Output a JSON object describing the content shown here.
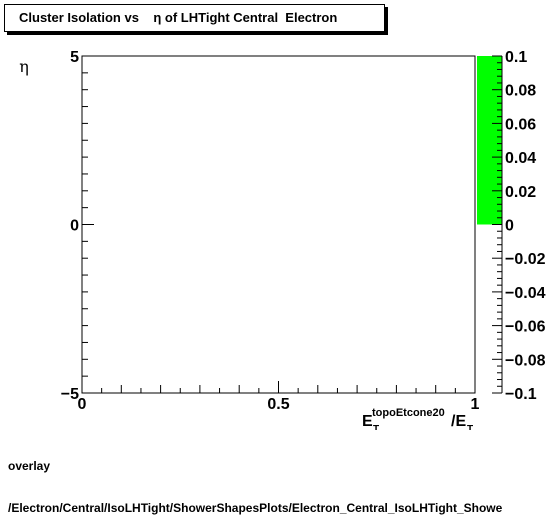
{
  "title": "Cluster Isolation vs    η of LHTight Central  Electron",
  "footer": {
    "line1": "overlay",
    "line2": "/Electron/Central/IsoLHTight/ShowerShapesPlots/Electron_Central_IsoLHTight_Showe"
  },
  "chart_data": {
    "type": "heatmap",
    "title": "Cluster Isolation vs    η of LHTight Central  Electron",
    "xlabel": "E_T^topoEtcone20 /E_T",
    "ylabel": "η",
    "xlim": [
      0,
      1
    ],
    "ylim": [
      -5,
      5
    ],
    "x_ticks": [
      {
        "value": 0,
        "label": "0"
      },
      {
        "value": 0.5,
        "label": "0.5"
      },
      {
        "value": 1,
        "label": "1"
      }
    ],
    "y_ticks": [
      {
        "value": -5,
        "label": "−5"
      },
      {
        "value": 0,
        "label": "0"
      },
      {
        "value": 5,
        "label": "5"
      }
    ],
    "cells": [],
    "colorbar": {
      "zlim": [
        -0.1,
        0.1
      ],
      "filled_range": [
        0,
        0.1
      ],
      "fill_color": "#00ff00",
      "ticks": [
        {
          "value": 0.1,
          "label": "0.1"
        },
        {
          "value": 0.08,
          "label": "0.08"
        },
        {
          "value": 0.06,
          "label": "0.06"
        },
        {
          "value": 0.04,
          "label": "0.04"
        },
        {
          "value": 0.02,
          "label": "0.02"
        },
        {
          "value": 0,
          "label": "0"
        },
        {
          "value": -0.02,
          "label": "−0.02"
        },
        {
          "value": -0.04,
          "label": "−0.04"
        },
        {
          "value": -0.06,
          "label": "−0.06"
        },
        {
          "value": -0.08,
          "label": "−0.08"
        },
        {
          "value": -0.1,
          "label": "−0.1"
        }
      ]
    },
    "grid": false,
    "legend": "none"
  }
}
